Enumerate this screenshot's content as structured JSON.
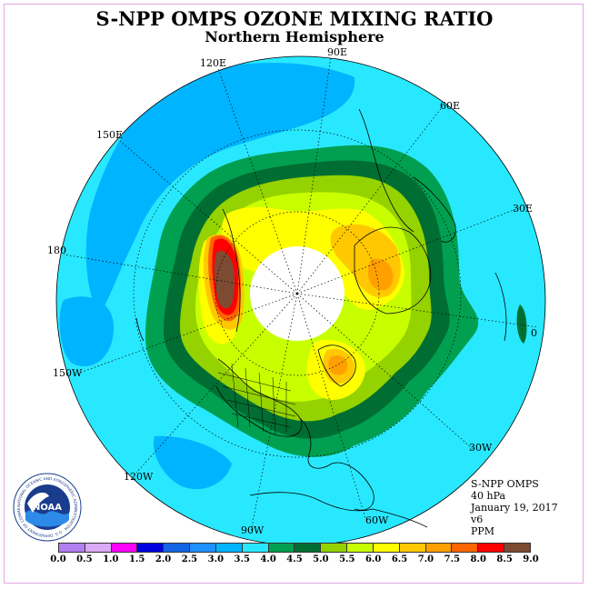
{
  "title": "S-NPP OMPS OZONE MIXING RATIO",
  "subtitle": "Northern Hemisphere",
  "longitude_labels": [
    {
      "name": "lon-90e",
      "text": "90E"
    },
    {
      "name": "lon-60e",
      "text": "60E"
    },
    {
      "name": "lon-30e",
      "text": "30E"
    },
    {
      "name": "lon-0",
      "text": "0"
    },
    {
      "name": "lon-30w",
      "text": "30W"
    },
    {
      "name": "lon-60w",
      "text": "60W"
    },
    {
      "name": "lon-90w",
      "text": "90W"
    },
    {
      "name": "lon-120w",
      "text": "120W"
    },
    {
      "name": "lon-150w",
      "text": "150W"
    },
    {
      "name": "lon-180",
      "text": "180"
    },
    {
      "name": "lon-150e",
      "text": "150E"
    },
    {
      "name": "lon-120e",
      "text": "120E"
    }
  ],
  "info": {
    "instrument": "S-NPP OMPS",
    "level": "40 hPa",
    "date": "January 19, 2017",
    "version": "v6",
    "units": "PPM"
  },
  "logo": {
    "text": "NOAA",
    "ring_text": "NATIONAL OCEANIC AND ATMOSPHERIC ADMINISTRATION · U.S. DEPARTMENT OF COMMERCE"
  },
  "colorbar": {
    "ticks": [
      "0.0",
      "0.5",
      "1.0",
      "1.5",
      "2.0",
      "2.5",
      "3.0",
      "3.5",
      "4.0",
      "4.5",
      "5.0",
      "5.5",
      "6.0",
      "6.5",
      "7.0",
      "7.5",
      "8.0",
      "8.5",
      "9.0"
    ],
    "colors": [
      "#b27ff0",
      "#dba9f5",
      "#ff00ff",
      "#0000e0",
      "#1464e6",
      "#1e90ff",
      "#00b4ff",
      "#28e8ff",
      "#00a050",
      "#006e32",
      "#94d200",
      "#c8ff00",
      "#ffff00",
      "#ffc800",
      "#ffa000",
      "#ff6400",
      "#ff0000",
      "#7d4b32"
    ]
  }
}
